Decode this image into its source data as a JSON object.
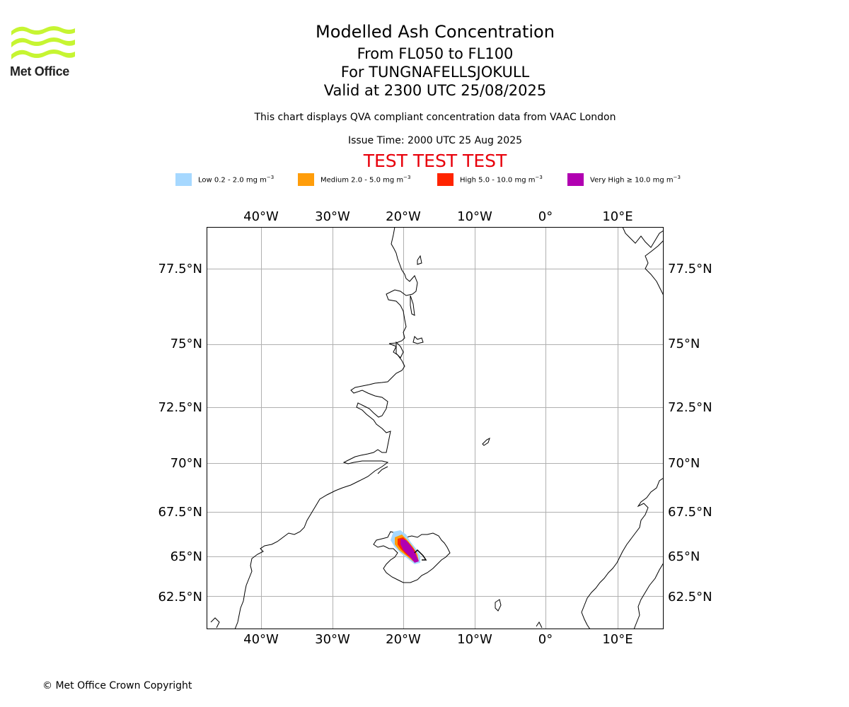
{
  "brand": {
    "name": "Met Office"
  },
  "header": {
    "title": "Modelled Ash Concentration",
    "subtitle_levels": "From FL050 to FL100",
    "subtitle_volcano": "For TUNGNAFELLSJOKULL",
    "subtitle_valid": "Valid at 2300 UTC 25/08/2025",
    "description": "This chart displays QVA compliant concentration data from VAAC London",
    "issue_time": "Issue Time: 2000 UTC 25 Aug 2025",
    "test_banner": "TEST TEST TEST"
  },
  "legend": [
    {
      "label": "Low 0.2 - 2.0 mg m",
      "exp": "−3",
      "color": "#a6d8ff"
    },
    {
      "label": "Medium 2.0 - 5.0 mg m",
      "exp": "−3",
      "color": "#ff9d0a"
    },
    {
      "label": "High 5.0 - 10.0 mg m",
      "exp": "−3",
      "color": "#ff2400"
    },
    {
      "label": "Very High  ≥  10.0 mg m",
      "exp": "−3",
      "color": "#b100b1"
    }
  ],
  "map": {
    "lon_ticks": [
      "40°W",
      "30°W",
      "20°W",
      "10°W",
      "0°",
      "10°E"
    ],
    "lat_ticks": [
      "77.5°N",
      "75°N",
      "72.5°N",
      "70°N",
      "67.5°N",
      "65°N",
      "62.5°N"
    ],
    "frame_color": "#000000",
    "grid_color": "#b0b0b0"
  },
  "footer": {
    "copyright": "© Met Office Crown Copyright"
  }
}
